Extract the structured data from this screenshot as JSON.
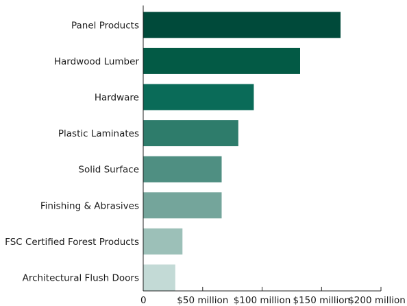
{
  "chart_data": {
    "type": "bar",
    "orientation": "horizontal",
    "categories": [
      "Panel Products",
      "Hardwood Lumber",
      "Hardware",
      "Plastic Laminates",
      "Solid Surface",
      "Finishing & Abrasives",
      "FSC Certified Forest Products",
      "Architectural Flush Doors"
    ],
    "values": [
      166,
      132,
      93,
      80,
      66,
      66,
      33,
      27
    ],
    "unit": "$ million",
    "xlim": [
      0,
      200
    ],
    "x_ticks": [
      0,
      50,
      100,
      150,
      200
    ],
    "x_tick_labels": [
      "0",
      "$50 million",
      "$100 million",
      "$150 million",
      "$200 million"
    ],
    "colors": [
      "#004a3a",
      "#035a45",
      "#0a6b58",
      "#2e7c6b",
      "#4f8f82",
      "#74a59b",
      "#9cc0b8",
      "#c3dad6"
    ],
    "grid": false,
    "legend": "none"
  }
}
